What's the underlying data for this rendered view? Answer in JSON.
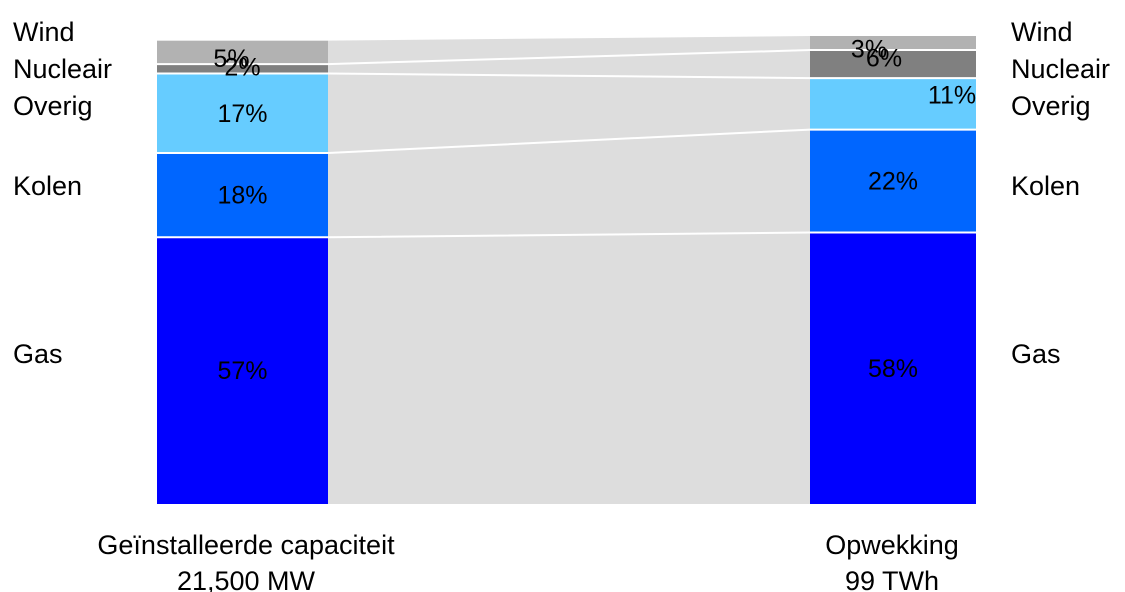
{
  "chart_data": {
    "type": "bar",
    "stacked": true,
    "categories": [
      [
        "Geïnstalleerde capaciteit",
        "21,500 MW"
      ],
      [
        "Opwekking",
        "99 TWh"
      ]
    ],
    "series": [
      {
        "name": "Gas",
        "color": "#0000FF",
        "values": [
          57,
          58
        ],
        "labels": [
          "57%",
          "58%"
        ]
      },
      {
        "name": "Kolen",
        "color": "#0066FF",
        "values": [
          18,
          22
        ],
        "labels": [
          "18%",
          "22%"
        ]
      },
      {
        "name": "Overig",
        "color": "#66CCFF",
        "values": [
          17,
          11
        ],
        "labels": [
          "17%",
          "11%"
        ]
      },
      {
        "name": "Nucleair",
        "color": "#808080",
        "values": [
          2,
          6
        ],
        "labels": [
          "2%",
          "6%"
        ]
      },
      {
        "name": "Wind",
        "color": "#B2B2B2",
        "values": [
          5,
          3
        ],
        "labels": [
          "5%",
          "3%"
        ]
      }
    ],
    "ylim": [
      0,
      100
    ],
    "connector_color": "#DDDDDD",
    "grid": false
  }
}
